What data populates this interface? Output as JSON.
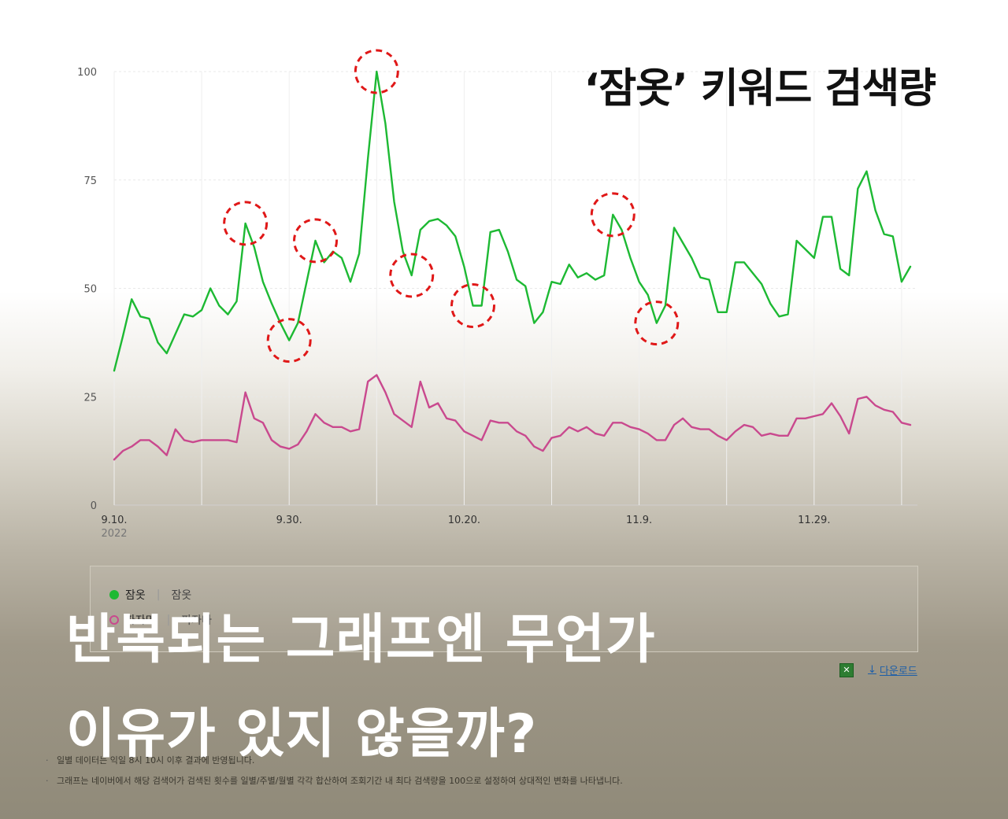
{
  "headline": "‘잠옷’ 키워드 검색량",
  "overlay": {
    "line1": "반복되는 그래프엔 무언가",
    "line2": "이유가 있지 않을까?"
  },
  "legend": {
    "row1": {
      "label": "잠옷",
      "keyword": "잠옷"
    },
    "row2": {
      "label": "파자마",
      "keyword": "파자마"
    }
  },
  "tools": {
    "download_label": "다운로드"
  },
  "notes": [
    "일별 데이터는 익일 8시 10시 이후 결과에 반영됩니다.",
    "그래프는 네이버에서 해당 검색어가 검색된 횟수를 일별/주별/월별 각각 합산하여 조회기간 내 최다 검색량을 100으로 설정하여 상대적인 변화를 나타냅니다."
  ],
  "colors": {
    "series1": "#1db933",
    "series2": "#c9498e",
    "highlight": "#e01818"
  },
  "chart_data": {
    "type": "line",
    "ylim": [
      0,
      100
    ],
    "yticks": [
      "0",
      "25",
      "50",
      "75",
      "100"
    ],
    "x_tick_labels": [
      "9.10.",
      "9.30.",
      "10.20.",
      "11.9.",
      "11.29."
    ],
    "x_tick_index": [
      0,
      20,
      40,
      60,
      80
    ],
    "x_sublabel": "2022",
    "grid": true,
    "series": [
      {
        "name": "잠옷",
        "color": "#1db933",
        "values": [
          31,
          39,
          47.5,
          43.5,
          43,
          37.5,
          35,
          39.5,
          44,
          43.5,
          45,
          50,
          46,
          44,
          47,
          65,
          59.5,
          51.5,
          46.5,
          42,
          38,
          42,
          51.5,
          61,
          56,
          58.5,
          57,
          51.5,
          58,
          80,
          100,
          88,
          70,
          58.5,
          53,
          63.5,
          65.5,
          66,
          64.5,
          62,
          55,
          46,
          46,
          63,
          63.5,
          58.5,
          52,
          50.5,
          42,
          44.5,
          51.5,
          51,
          55.5,
          52.5,
          53.5,
          52,
          53,
          67,
          63.5,
          57,
          51.5,
          48.5,
          42,
          46,
          64,
          60.5,
          57,
          52.5,
          52,
          44.5,
          44.5,
          56,
          56,
          53.5,
          51,
          46.5,
          43.5,
          44,
          61,
          59,
          57,
          66.5,
          66.5,
          54.5,
          53,
          73,
          77,
          68,
          62.5,
          62,
          51.5,
          55
        ]
      },
      {
        "name": "파자마",
        "color": "#c9498e",
        "values": [
          10.5,
          12.5,
          13.5,
          15,
          15,
          13.5,
          11.5,
          17.5,
          15,
          14.5,
          15,
          15,
          15,
          15,
          14.5,
          26,
          20,
          19,
          15,
          13.5,
          13,
          14,
          17,
          21,
          19,
          18,
          18,
          17,
          17.5,
          28.5,
          30,
          26,
          21,
          19.5,
          18,
          28.5,
          22.5,
          23.5,
          20,
          19.5,
          17,
          16,
          15,
          19.5,
          19,
          19,
          17,
          16,
          13.5,
          12.5,
          15.5,
          16,
          18,
          17,
          18,
          16.5,
          16,
          19,
          19,
          18,
          17.5,
          16.5,
          15,
          15,
          18.5,
          20,
          18,
          17.5,
          17.5,
          16,
          15,
          17,
          18.5,
          18,
          16,
          16.5,
          16,
          16,
          20,
          20,
          20.5,
          21,
          23.5,
          20.5,
          16.5,
          24.5,
          25,
          23,
          22,
          21.5,
          19,
          18.5
        ]
      }
    ],
    "highlights_index": [
      15,
      20,
      23,
      30,
      34,
      41,
      57,
      62
    ]
  }
}
